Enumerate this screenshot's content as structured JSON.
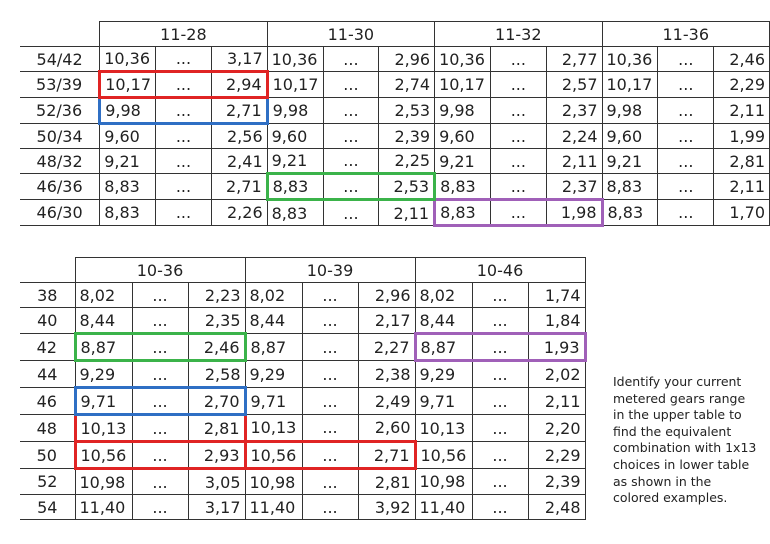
{
  "upper": {
    "headers": [
      "11-28",
      "11-30",
      "11-32",
      "11-36"
    ],
    "rows": [
      [
        "54/42",
        "10,36",
        "...",
        "3,17",
        "10,36",
        "...",
        "2,96",
        "10,36",
        "...",
        "2,77",
        "10,36",
        "...",
        "2,46"
      ],
      [
        "53/39",
        "10,17",
        "...",
        "2,94",
        "10,17",
        "...",
        "2,74",
        "10,17",
        "...",
        "2,57",
        "10,17",
        "...",
        "2,29"
      ],
      [
        "52/36",
        "9,98",
        "...",
        "2,71",
        "9,98",
        "...",
        "2,53",
        "9,98",
        "...",
        "2,37",
        "9,98",
        "...",
        "2,11"
      ],
      [
        "50/34",
        "9,60",
        "...",
        "2,56",
        "9,60",
        "...",
        "2,39",
        "9,60",
        "...",
        "2,24",
        "9,60",
        "...",
        "1,99"
      ],
      [
        "48/32",
        "9,21",
        "...",
        "2,41",
        "9,21",
        "...",
        "2,25",
        "9,21",
        "...",
        "2,11",
        "9,21",
        "...",
        "2,81"
      ],
      [
        "46/36",
        "8,83",
        "...",
        "2,71",
        "8,83",
        "...",
        "2,53",
        "8,83",
        "...",
        "2,37",
        "8,83",
        "...",
        "2,11"
      ],
      [
        "46/30",
        "8,83",
        "...",
        "2,26",
        "8,83",
        "...",
        "2,11",
        "8,83",
        "...",
        "1,98",
        "8,83",
        "...",
        "1,70"
      ]
    ]
  },
  "lower": {
    "headers": [
      "10-36",
      "10-39",
      "10-46"
    ],
    "rows": [
      [
        "38",
        "8,02",
        "...",
        "2,23",
        "8,02",
        "...",
        "2,96",
        "8,02",
        "...",
        "1,74"
      ],
      [
        "40",
        "8,44",
        "...",
        "2,35",
        "8,44",
        "...",
        "2,17",
        "8,44",
        "...",
        "1,84"
      ],
      [
        "42",
        "8,87",
        "...",
        "2,46",
        "8,87",
        "...",
        "2,27",
        "8,87",
        "...",
        "1,93"
      ],
      [
        "44",
        "9,29",
        "...",
        "2,58",
        "9,29",
        "...",
        "2,38",
        "9,29",
        "...",
        "2,02"
      ],
      [
        "46",
        "9,71",
        "...",
        "2,70",
        "9,71",
        "...",
        "2,49",
        "9,71",
        "...",
        "2,11"
      ],
      [
        "48",
        "10,13",
        "...",
        "2,81",
        "10,13",
        "...",
        "2,60",
        "10,13",
        "...",
        "2,20"
      ],
      [
        "50",
        "10,56",
        "...",
        "2,93",
        "10,56",
        "...",
        "2,71",
        "10,56",
        "...",
        "2,29"
      ],
      [
        "52",
        "10,98",
        "...",
        "3,05",
        "10,98",
        "...",
        "2,81",
        "10,98",
        "...",
        "2,39"
      ],
      [
        "54",
        "11,40",
        "...",
        "3,17",
        "11,40",
        "...",
        "3,92",
        "11,40",
        "...",
        "2,48"
      ]
    ]
  },
  "note": [
    "Identify your current",
    "metered gears range",
    "in the upper table to",
    "find the equivalent",
    "combination with 1x13",
    "choices in lower table",
    "as shown in the",
    "colored examples."
  ]
}
